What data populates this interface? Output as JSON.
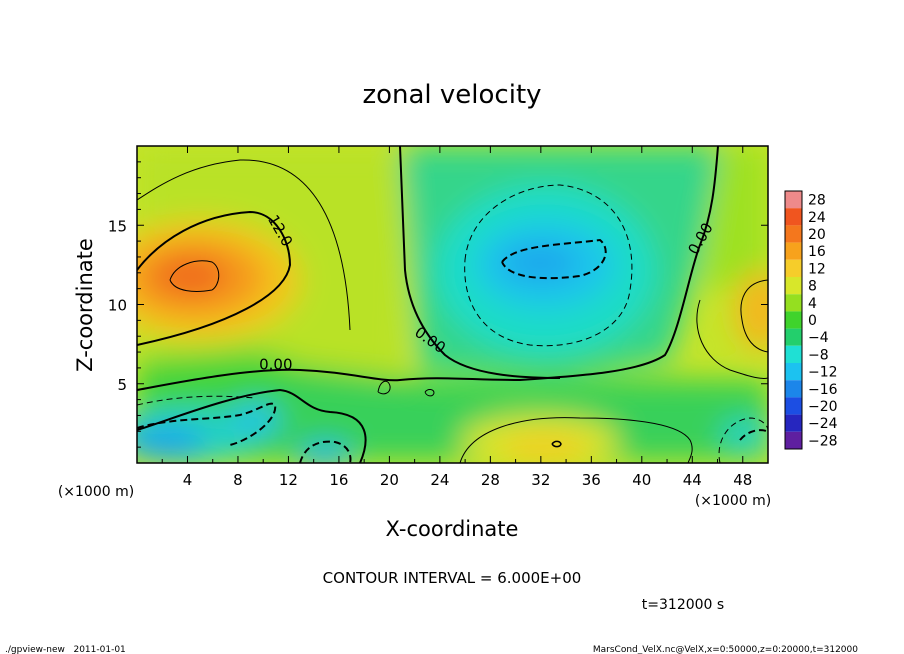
{
  "chart_data": {
    "type": "heatmap",
    "title": "zonal velocity",
    "xlabel": "X-coordinate",
    "ylabel": "Z-coordinate",
    "x_unit_label": "(×1000 m)",
    "y_unit_label": "(×1000 m)",
    "xlim": [
      0,
      50
    ],
    "ylim": [
      0,
      20
    ],
    "x_ticks": [
      4,
      8,
      12,
      16,
      20,
      24,
      28,
      32,
      36,
      40,
      44,
      48
    ],
    "y_ticks": [
      5,
      10,
      15
    ],
    "colorbar_levels": [
      28,
      24,
      20,
      16,
      12,
      8,
      4,
      0,
      -4,
      -8,
      -12,
      -16,
      -20,
      -24,
      -28
    ],
    "colorbar_colors": [
      "#ee8a8a",
      "#f0551f",
      "#f4771d",
      "#f7a21c",
      "#f6cd2a",
      "#d8e72a",
      "#95df20",
      "#3fd32c",
      "#23cf6c",
      "#1fe0d4",
      "#1cc2f0",
      "#1c86ea",
      "#1c4ee3",
      "#2626bf",
      "#5f1fa0"
    ],
    "contour_labels": [
      {
        "text": "12.0",
        "x": 11.0,
        "z": 14.5
      },
      {
        "text": "0.00",
        "x": 11.0,
        "z": 5.9
      },
      {
        "text": "0.00",
        "x": 23.0,
        "z": 7.5
      },
      {
        "text": "0.00",
        "x": 45.0,
        "z": 14.0
      }
    ],
    "features": [
      {
        "name": "eastward-jet",
        "x": 5,
        "z": 11.8,
        "value": 20
      },
      {
        "name": "westward-core",
        "x": 32,
        "z": 12.5,
        "value": -12
      },
      {
        "name": "lower-left-westward",
        "x": 3,
        "z": 1.5,
        "value": -14
      },
      {
        "name": "lower-center-eastward",
        "x": 32,
        "z": 1.5,
        "value": 12
      }
    ],
    "contour_interval_text": "CONTOUR INTERVAL = 6.000E+00",
    "time_text": "t=312000 s"
  },
  "footer": {
    "left": "./gpview-new   2011-01-01",
    "right": "MarsCond_VelX.nc@VelX,x=0:50000,z=0:20000,t=312000"
  }
}
